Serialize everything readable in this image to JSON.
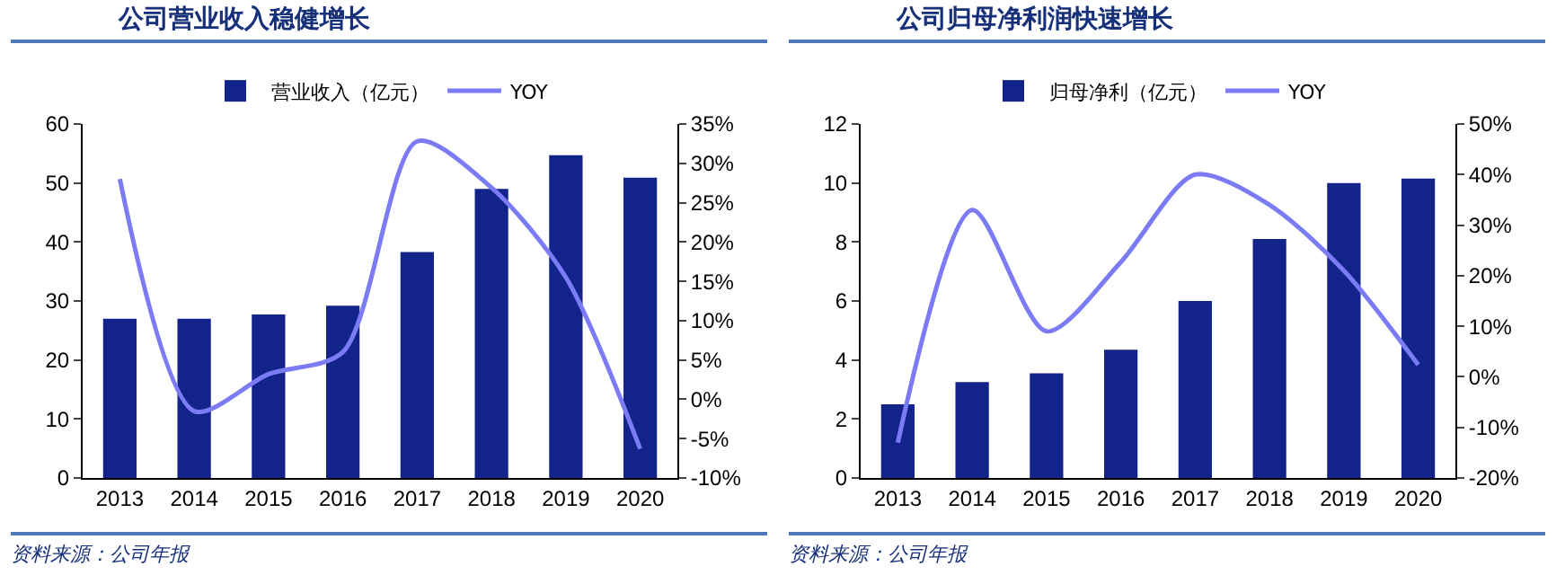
{
  "chart_data": [
    {
      "type": "bar",
      "title": "公司营业收入稳健增长",
      "categories": [
        "2013",
        "2014",
        "2015",
        "2016",
        "2017",
        "2018",
        "2019",
        "2020"
      ],
      "series": [
        {
          "name": "营业收入（亿元）",
          "color": "#12238a",
          "values": [
            27,
            27,
            27.7,
            29.2,
            38.3,
            49,
            54.7,
            50.9
          ]
        },
        {
          "name": "YOY",
          "type": "line",
          "axis": "y2",
          "color": "#7b7bf5",
          "values": [
            28,
            -1.5,
            3.2,
            6,
            32.8,
            26.9,
            15.5,
            -6.3
          ]
        }
      ],
      "ylim": [
        0,
        60
      ],
      "yticks": [
        0,
        10,
        20,
        30,
        40,
        50,
        60
      ],
      "y2lim": [
        -10,
        35
      ],
      "y2ticks": [
        {
          "value": -10,
          "label": "-10%"
        },
        {
          "value": -5,
          "label": "-5%"
        },
        {
          "value": 0,
          "label": "0%"
        },
        {
          "value": 5,
          "label": "5%"
        },
        {
          "value": 10,
          "label": "10%"
        },
        {
          "value": 15,
          "label": "15%"
        },
        {
          "value": 20,
          "label": "20%"
        },
        {
          "value": 25,
          "label": "25%"
        },
        {
          "value": 30,
          "label": "30%"
        },
        {
          "value": 35,
          "label": "35%"
        }
      ],
      "grid": false,
      "legend": "top",
      "annotations": [
        "资料来源：公司年报"
      ]
    },
    {
      "type": "bar",
      "title": "公司归母净利润快速增长",
      "categories": [
        "2013",
        "2014",
        "2015",
        "2016",
        "2017",
        "2018",
        "2019",
        "2020"
      ],
      "series": [
        {
          "name": "归母净利（亿元）",
          "color": "#12238a",
          "values": [
            2.5,
            3.25,
            3.55,
            4.35,
            6,
            8.1,
            10,
            10.15
          ]
        },
        {
          "name": "YOY",
          "type": "line",
          "axis": "y2",
          "color": "#7b7bf5",
          "values": [
            -13,
            33,
            9,
            22.7,
            40,
            34,
            21,
            2.4
          ]
        }
      ],
      "ylim": [
        0,
        12
      ],
      "yticks": [
        0,
        2,
        4,
        6,
        8,
        10,
        12
      ],
      "y2lim": [
        -20,
        50
      ],
      "y2ticks": [
        {
          "value": -20,
          "label": "-20%"
        },
        {
          "value": -10,
          "label": "-10%"
        },
        {
          "value": 0,
          "label": "0%"
        },
        {
          "value": 10,
          "label": "10%"
        },
        {
          "value": 20,
          "label": "20%"
        },
        {
          "value": 30,
          "label": "30%"
        },
        {
          "value": 40,
          "label": "40%"
        },
        {
          "value": 50,
          "label": "50%"
        }
      ],
      "grid": false,
      "legend": "top",
      "annotations": [
        "资料来源：公司年报"
      ]
    }
  ]
}
